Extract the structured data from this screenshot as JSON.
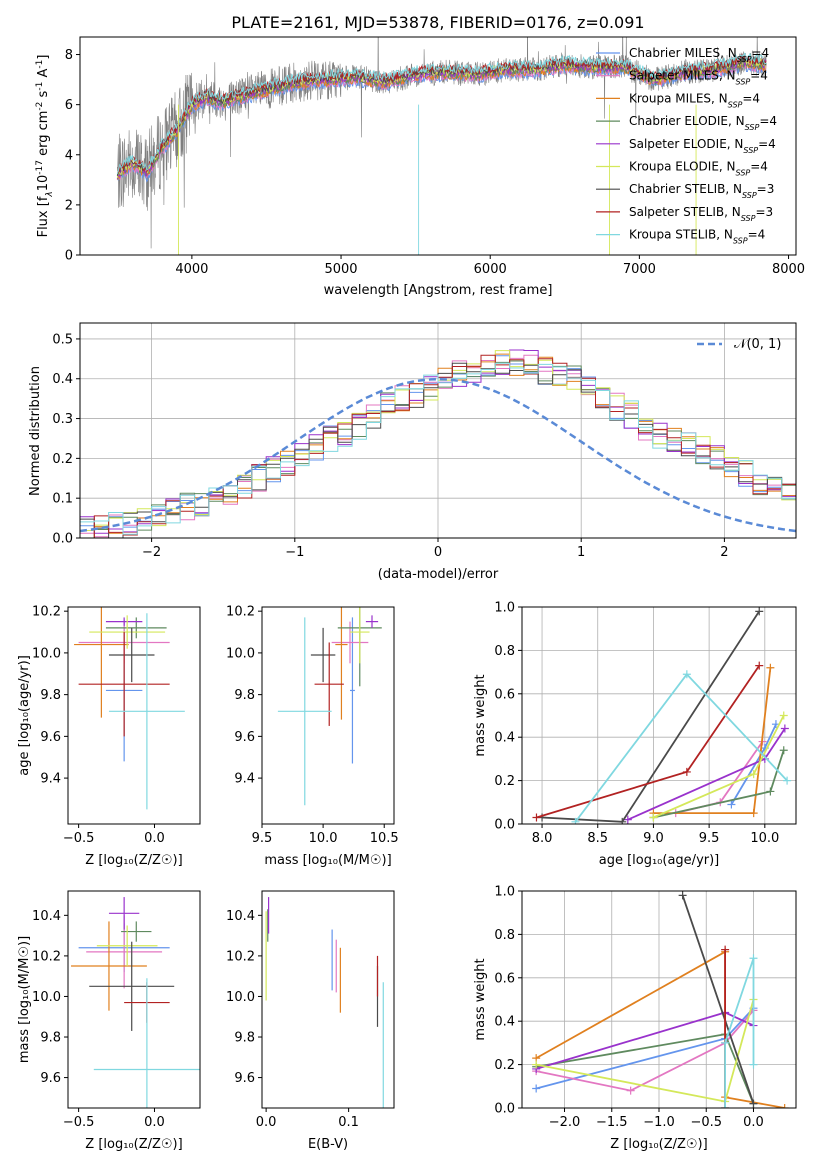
{
  "chart_data": [
    {
      "id": "spectrum",
      "type": "line",
      "title": "PLATE=2161, MJD=53878, FIBERID=0176, z=0.091",
      "xlabel": "wavelength [Angstrom, rest frame]",
      "ylabel_parts": [
        "Flux [f",
        "λ",
        "10",
        "-17",
        " erg cm",
        "-2",
        " s",
        "-1",
        " A",
        "-1",
        "]"
      ],
      "xlim": [
        3250,
        8050
      ],
      "ylim": [
        0,
        8.7
      ],
      "xticks": [
        4000,
        5000,
        6000,
        7000,
        8000
      ],
      "yticks": [
        0,
        2,
        4,
        6,
        8
      ],
      "legend_position": "top-right",
      "data_color": "#7f7f7f",
      "data_range": [
        3500,
        7850
      ],
      "continuum_x": [
        3500,
        3600,
        3700,
        3800,
        3900,
        4000,
        4100,
        4200,
        4300,
        4500,
        4700,
        4900,
        5100,
        5300,
        5500,
        5700,
        5900,
        6100,
        6300,
        6500,
        6700,
        6900,
        7100,
        7300,
        7500,
        7700,
        7850
      ],
      "continuum_y": [
        3.2,
        3.7,
        3.3,
        4.3,
        5.0,
        6.0,
        6.3,
        6.1,
        6.3,
        6.6,
        6.9,
        7.0,
        7.1,
        6.9,
        7.2,
        7.3,
        7.2,
        7.4,
        7.4,
        7.6,
        7.5,
        7.5,
        7.0,
        7.3,
        7.4,
        7.7,
        7.6
      ],
      "series": [
        {
          "label": "Chabrier MILES, N",
          "sub": "SSP",
          "suffix": "=4",
          "color": "#6495ed"
        },
        {
          "label": "Salpeter MILES, N",
          "sub": "SSP",
          "suffix": "=4",
          "color": "#e377c2"
        },
        {
          "label": "Kroupa MILES, N",
          "sub": "SSP",
          "suffix": "=4",
          "color": "#e0801f"
        },
        {
          "label": "Chabrier ELODIE, N",
          "sub": "SSP",
          "suffix": "=4",
          "color": "#5f8a5f"
        },
        {
          "label": "Salpeter ELODIE, N",
          "sub": "SSP",
          "suffix": "=4",
          "color": "#9932cc"
        },
        {
          "label": "Kroupa ELODIE, N",
          "sub": "SSP",
          "suffix": "=4",
          "color": "#d4e85a"
        },
        {
          "label": "Chabrier STELIB, N",
          "sub": "SSP",
          "suffix": "=3",
          "color": "#4a4a4a"
        },
        {
          "label": "Salpeter STELIB, N",
          "sub": "SSP",
          "suffix": "=3",
          "color": "#b22222"
        },
        {
          "label": "Kroupa STELIB, N",
          "sub": "SSP",
          "suffix": "=4",
          "color": "#80d8e0"
        }
      ]
    },
    {
      "id": "residuals",
      "type": "step",
      "xlabel": "(data-model)/error",
      "ylabel": "Normed distribution",
      "xlim": [
        -2.5,
        2.5
      ],
      "ylim": [
        0,
        0.54
      ],
      "xticks": [
        -2,
        -1,
        0,
        1,
        2
      ],
      "yticks": [
        0.0,
        0.1,
        0.2,
        0.3,
        0.4,
        0.5
      ],
      "grid": true,
      "legend": "𝒩(0, 1)",
      "legend_position": "top-right",
      "gaussian_color": "#5a8ad6",
      "bin_width": 0.1,
      "base_heights": [
        0.02,
        0.03,
        0.03,
        0.04,
        0.05,
        0.06,
        0.07,
        0.08,
        0.09,
        0.1,
        0.11,
        0.13,
        0.15,
        0.17,
        0.19,
        0.21,
        0.23,
        0.25,
        0.26,
        0.28,
        0.3,
        0.33,
        0.35,
        0.36,
        0.38,
        0.4,
        0.41,
        0.42,
        0.43,
        0.44,
        0.44,
        0.44,
        0.42,
        0.41,
        0.4,
        0.38,
        0.35,
        0.33,
        0.31,
        0.28,
        0.26,
        0.25,
        0.24,
        0.22,
        0.2,
        0.18,
        0.16,
        0.14,
        0.12,
        0.11,
        0.09,
        0.08,
        0.07,
        0.06,
        0.05,
        0.04,
        0.03,
        0.03,
        0.02,
        0.02
      ]
    },
    {
      "id": "age-vs-Z",
      "type": "errorbar",
      "xlabel": "Z [log₁₀(Z/Z☉)]",
      "ylabel": "age  [log₁₀(age/yr)]",
      "xlim": [
        -0.57,
        0.3
      ],
      "ylim": [
        9.18,
        10.22
      ],
      "xticks": [
        -0.5,
        0.0
      ],
      "yticks": [
        9.4,
        9.6,
        9.8,
        10.0,
        10.2
      ],
      "points": [
        {
          "x": -0.2,
          "y": 9.82,
          "xerr": 0.12,
          "yerr": 0.34,
          "color": "#6495ed"
        },
        {
          "x": -0.2,
          "y": 10.05,
          "xerr": 0.3,
          "yerr": 0.1,
          "color": "#e377c2"
        },
        {
          "x": -0.35,
          "y": 10.04,
          "xerr": 0.18,
          "yerr": 0.35,
          "color": "#e0801f"
        },
        {
          "x": -0.12,
          "y": 10.12,
          "xerr": 0.2,
          "yerr": 0.05,
          "color": "#5f8a5f"
        },
        {
          "x": -0.2,
          "y": 10.15,
          "xerr": 0.12,
          "yerr": 0.02,
          "color": "#9932cc"
        },
        {
          "x": -0.18,
          "y": 10.1,
          "xerr": 0.25,
          "yerr": 0.08,
          "color": "#d4e85a"
        },
        {
          "x": -0.15,
          "y": 9.99,
          "xerr": 0.15,
          "yerr": 0.13,
          "color": "#4a4a4a"
        },
        {
          "x": -0.2,
          "y": 9.85,
          "xerr": 0.3,
          "yerr": 0.25,
          "color": "#b22222"
        },
        {
          "x": -0.05,
          "y": 9.72,
          "xerr": 0.25,
          "yerr": 0.47,
          "color": "#80d8e0"
        }
      ]
    },
    {
      "id": "age-vs-mass",
      "type": "errorbar",
      "xlabel": "mass [log₁₀(M/M☉)]",
      "xlim": [
        9.5,
        10.58
      ],
      "ylim": [
        9.18,
        10.22
      ],
      "xticks": [
        9.5,
        10.0,
        10.5
      ],
      "yticks": [
        9.4,
        9.6,
        9.8,
        10.0,
        10.2
      ],
      "points": [
        {
          "x": 10.24,
          "y": 9.82,
          "xerr": 0.02,
          "yerr": 0.35,
          "color": "#6495ed"
        },
        {
          "x": 10.22,
          "y": 10.05,
          "xerr": 0.15,
          "yerr": 0.1,
          "color": "#e377c2"
        },
        {
          "x": 10.15,
          "y": 10.04,
          "xerr": 0.05,
          "yerr": 0.36,
          "color": "#e0801f"
        },
        {
          "x": 10.3,
          "y": 10.12,
          "xerr": 0.18,
          "yerr": 0.28,
          "color": "#5f8a5f"
        },
        {
          "x": 10.4,
          "y": 10.15,
          "xerr": 0.05,
          "yerr": 0.03,
          "color": "#9932cc"
        },
        {
          "x": 10.3,
          "y": 10.1,
          "xerr": 0.08,
          "yerr": 0.15,
          "color": "#d4e85a"
        },
        {
          "x": 10.0,
          "y": 9.99,
          "xerr": 0.1,
          "yerr": 0.13,
          "color": "#4a4a4a"
        },
        {
          "x": 10.05,
          "y": 9.85,
          "xerr": 0.12,
          "yerr": 0.2,
          "color": "#b22222"
        },
        {
          "x": 9.85,
          "y": 9.72,
          "xerr": 0.22,
          "yerr": 0.45,
          "color": "#80d8e0"
        }
      ]
    },
    {
      "id": "weight-vs-age",
      "type": "line",
      "xlabel": "age  [log₁₀(age/yr)]",
      "ylabel": "mass weight",
      "xlim": [
        7.82,
        10.28
      ],
      "ylim": [
        0,
        1
      ],
      "xticks": [
        8.0,
        8.5,
        9.0,
        9.5,
        10.0
      ],
      "yticks": [
        0.0,
        0.2,
        0.4,
        0.6,
        0.8,
        1.0
      ],
      "grid": true,
      "series": [
        {
          "color": "#6495ed",
          "x": [
            9.7,
            10.0,
            10.1
          ],
          "y": [
            0.09,
            0.35,
            0.46
          ]
        },
        {
          "color": "#e377c2",
          "x": [
            9.2,
            9.6,
            9.98
          ],
          "y": [
            0.05,
            0.1,
            0.38
          ]
        },
        {
          "color": "#e0801f",
          "x": [
            9.0,
            9.9,
            10.05
          ],
          "y": [
            0.05,
            0.05,
            0.72
          ]
        },
        {
          "color": "#5f8a5f",
          "x": [
            9.0,
            10.05,
            10.17
          ],
          "y": [
            0.03,
            0.15,
            0.34
          ]
        },
        {
          "color": "#9932cc",
          "x": [
            8.77,
            10.0,
            10.18
          ],
          "y": [
            0.02,
            0.3,
            0.44
          ]
        },
        {
          "color": "#d4e85a",
          "x": [
            9.0,
            9.9,
            10.17
          ],
          "y": [
            0.03,
            0.23,
            0.5
          ]
        },
        {
          "color": "#4a4a4a",
          "x": [
            8.0,
            8.72,
            9.95
          ],
          "y": [
            0.03,
            0.01,
            0.98
          ]
        },
        {
          "color": "#b22222",
          "x": [
            7.95,
            9.3,
            9.95
          ],
          "y": [
            0.03,
            0.24,
            0.73
          ]
        },
        {
          "color": "#80d8e0",
          "x": [
            8.3,
            9.3,
            10.2
          ],
          "y": [
            0.01,
            0.69,
            0.2
          ]
        }
      ]
    },
    {
      "id": "mass-vs-Z",
      "type": "errorbar",
      "xlabel": "Z [log₁₀(Z/Z☉)]",
      "ylabel": "mass [log₁₀(M/M☉)]",
      "xlim": [
        -0.57,
        0.3
      ],
      "ylim": [
        9.45,
        10.52
      ],
      "xticks": [
        -0.5,
        0.0
      ],
      "yticks": [
        9.6,
        9.8,
        10.0,
        10.2,
        10.4
      ],
      "points": [
        {
          "x": -0.2,
          "y": 10.24,
          "xerr": 0.3,
          "yerr": 0.12,
          "color": "#6495ed"
        },
        {
          "x": -0.2,
          "y": 10.22,
          "xerr": 0.25,
          "yerr": 0.18,
          "color": "#e377c2"
        },
        {
          "x": -0.3,
          "y": 10.15,
          "xerr": 0.25,
          "yerr": 0.22,
          "color": "#e0801f"
        },
        {
          "x": -0.12,
          "y": 10.32,
          "xerr": 0.1,
          "yerr": 0.05,
          "color": "#5f8a5f"
        },
        {
          "x": -0.2,
          "y": 10.41,
          "xerr": 0.1,
          "yerr": 0.08,
          "color": "#9932cc"
        },
        {
          "x": -0.18,
          "y": 10.25,
          "xerr": 0.2,
          "yerr": 0.1,
          "color": "#d4e85a"
        },
        {
          "x": -0.15,
          "y": 10.05,
          "xerr": 0.28,
          "yerr": 0.22,
          "color": "#4a4a4a"
        },
        {
          "x": -0.05,
          "y": 9.97,
          "xerr": 0.15,
          "yerr": 0.1,
          "color": "#b22222"
        },
        {
          "x": -0.05,
          "y": 9.64,
          "xerr": 0.35,
          "yerr": 0.45,
          "color": "#80d8e0"
        }
      ]
    },
    {
      "id": "mass-vs-EBV",
      "type": "errorbar",
      "xlabel": "E(B-V)",
      "xlim": [
        -0.005,
        0.155
      ],
      "ylim": [
        9.45,
        10.52
      ],
      "xticks": [
        0.0,
        0.1
      ],
      "yticks": [
        9.6,
        9.8,
        10.0,
        10.2,
        10.4
      ],
      "points": [
        {
          "x": 0.08,
          "y": 10.18,
          "xerr": 0.0,
          "yerr": 0.15,
          "color": "#6495ed"
        },
        {
          "x": 0.085,
          "y": 10.15,
          "xerr": 0.0,
          "yerr": 0.13,
          "color": "#e377c2"
        },
        {
          "x": 0.09,
          "y": 10.08,
          "xerr": 0.0,
          "yerr": 0.16,
          "color": "#e0801f"
        },
        {
          "x": 0.002,
          "y": 10.35,
          "xerr": 0.0,
          "yerr": 0.08,
          "color": "#5f8a5f"
        },
        {
          "x": 0.003,
          "y": 10.4,
          "xerr": 0.0,
          "yerr": 0.09,
          "color": "#9932cc"
        },
        {
          "x": 0.0,
          "y": 10.2,
          "xerr": 0.0,
          "yerr": 0.22,
          "color": "#d4e85a"
        },
        {
          "x": 0.135,
          "y": 10.0,
          "xerr": 0.0,
          "yerr": 0.15,
          "color": "#4a4a4a"
        },
        {
          "x": 0.135,
          "y": 10.1,
          "xerr": 0.0,
          "yerr": 0.1,
          "color": "#b22222"
        },
        {
          "x": 0.142,
          "y": 9.75,
          "xerr": 0.0,
          "yerr": 0.32,
          "color": "#80d8e0"
        }
      ]
    },
    {
      "id": "weight-vs-Z",
      "type": "line",
      "xlabel": "Z [log₁₀(Z/Z☉)]",
      "ylabel": "mass weight",
      "xlim": [
        -2.45,
        0.45
      ],
      "ylim": [
        0,
        1
      ],
      "xticks": [
        -2.0,
        -1.5,
        -1.0,
        -0.5,
        0.0
      ],
      "yticks": [
        0.0,
        0.2,
        0.4,
        0.6,
        0.8,
        1.0
      ],
      "grid": true,
      "series": [
        {
          "color": "#6495ed",
          "x": [
            -2.3,
            -0.3,
            0.0
          ],
          "y": [
            0.09,
            0.32,
            0.46
          ]
        },
        {
          "color": "#e377c2",
          "x": [
            -2.3,
            -1.3,
            -0.3,
            0.0
          ],
          "y": [
            0.17,
            0.08,
            0.3,
            0.45
          ]
        },
        {
          "color": "#e0801f",
          "x": [
            -2.3,
            -0.3,
            -0.3,
            0.33
          ],
          "y": [
            0.23,
            0.72,
            0.05,
            0.0
          ]
        },
        {
          "color": "#5f8a5f",
          "x": [
            -2.3,
            -0.3,
            0.0
          ],
          "y": [
            0.19,
            0.34,
            0.02
          ]
        },
        {
          "color": "#9932cc",
          "x": [
            -2.3,
            -0.3,
            0.0
          ],
          "y": [
            0.18,
            0.44,
            0.38
          ]
        },
        {
          "color": "#d4e85a",
          "x": [
            -2.3,
            -0.3,
            0.0
          ],
          "y": [
            0.2,
            0.03,
            0.5
          ]
        },
        {
          "color": "#4a4a4a",
          "x": [
            -0.75,
            0.0
          ],
          "y": [
            0.98,
            0.02
          ]
        },
        {
          "color": "#b22222",
          "x": [
            -0.3,
            -0.3
          ],
          "y": [
            0.73,
            0.0
          ]
        },
        {
          "color": "#80d8e0",
          "x": [
            -0.3,
            -0.3,
            0.0,
            0.0
          ],
          "y": [
            0.0,
            0.3,
            0.69,
            0.2
          ]
        }
      ]
    }
  ]
}
